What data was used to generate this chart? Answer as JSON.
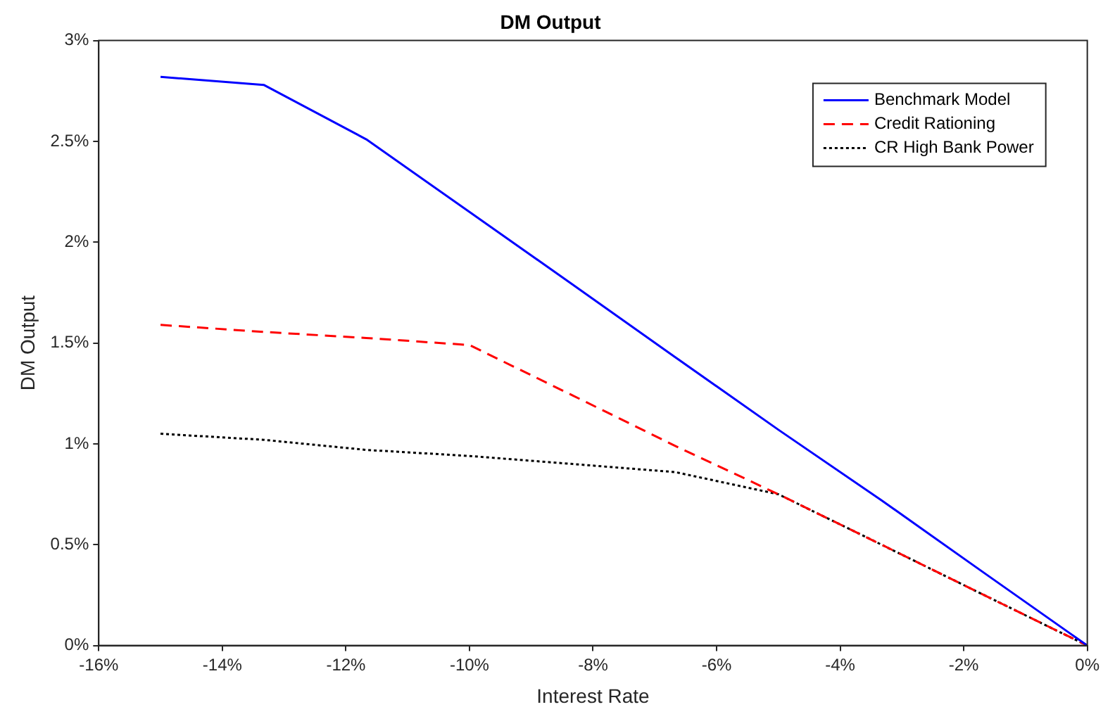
{
  "chart_data": {
    "type": "line",
    "title": "DM Output",
    "xlabel": "Interest Rate",
    "ylabel": "DM Output",
    "x": [
      -15,
      -13.33,
      -11.67,
      -10,
      -8.33,
      -6.67,
      -5,
      -3.33,
      -1.67,
      0
    ],
    "series": [
      {
        "name": "Benchmark Model",
        "color": "#0000ff",
        "line_style": "solid",
        "values": [
          2.82,
          2.78,
          2.51,
          2.15,
          1.79,
          1.43,
          1.07,
          0.72,
          0.36,
          0
        ]
      },
      {
        "name": "Credit Rationing",
        "color": "#ff0000",
        "line_style": "dashed",
        "values": [
          1.59,
          1.555,
          1.525,
          1.49,
          1.24,
          0.99,
          0.75,
          0.5,
          0.25,
          0
        ]
      },
      {
        "name": "CR High Bank Power",
        "color": "#000000",
        "line_style": "dotted",
        "values": [
          1.05,
          1.02,
          0.97,
          0.94,
          0.9,
          0.86,
          0.75,
          0.5,
          0.25,
          0
        ]
      }
    ],
    "xlim": [
      -16,
      0
    ],
    "xticks": [
      {
        "value": -16,
        "label": "-16%"
      },
      {
        "value": -14,
        "label": "-14%"
      },
      {
        "value": -12,
        "label": "-12%"
      },
      {
        "value": -10,
        "label": "-10%"
      },
      {
        "value": -8,
        "label": "-8%"
      },
      {
        "value": -6,
        "label": "-6%"
      },
      {
        "value": -4,
        "label": "-4%"
      },
      {
        "value": -2,
        "label": "-2%"
      },
      {
        "value": 0,
        "label": "0%"
      }
    ],
    "ylim": [
      0,
      3
    ],
    "yticks": [
      {
        "value": 0,
        "label": "0%"
      },
      {
        "value": 0.5,
        "label": "0.5%"
      },
      {
        "value": 1,
        "label": "1%"
      },
      {
        "value": 1.5,
        "label": "1.5%"
      },
      {
        "value": 2,
        "label": "2%"
      },
      {
        "value": 2.5,
        "label": "2.5%"
      },
      {
        "value": 3,
        "label": "3%"
      }
    ],
    "grid": false,
    "legend": "top right",
    "marker": "none"
  }
}
